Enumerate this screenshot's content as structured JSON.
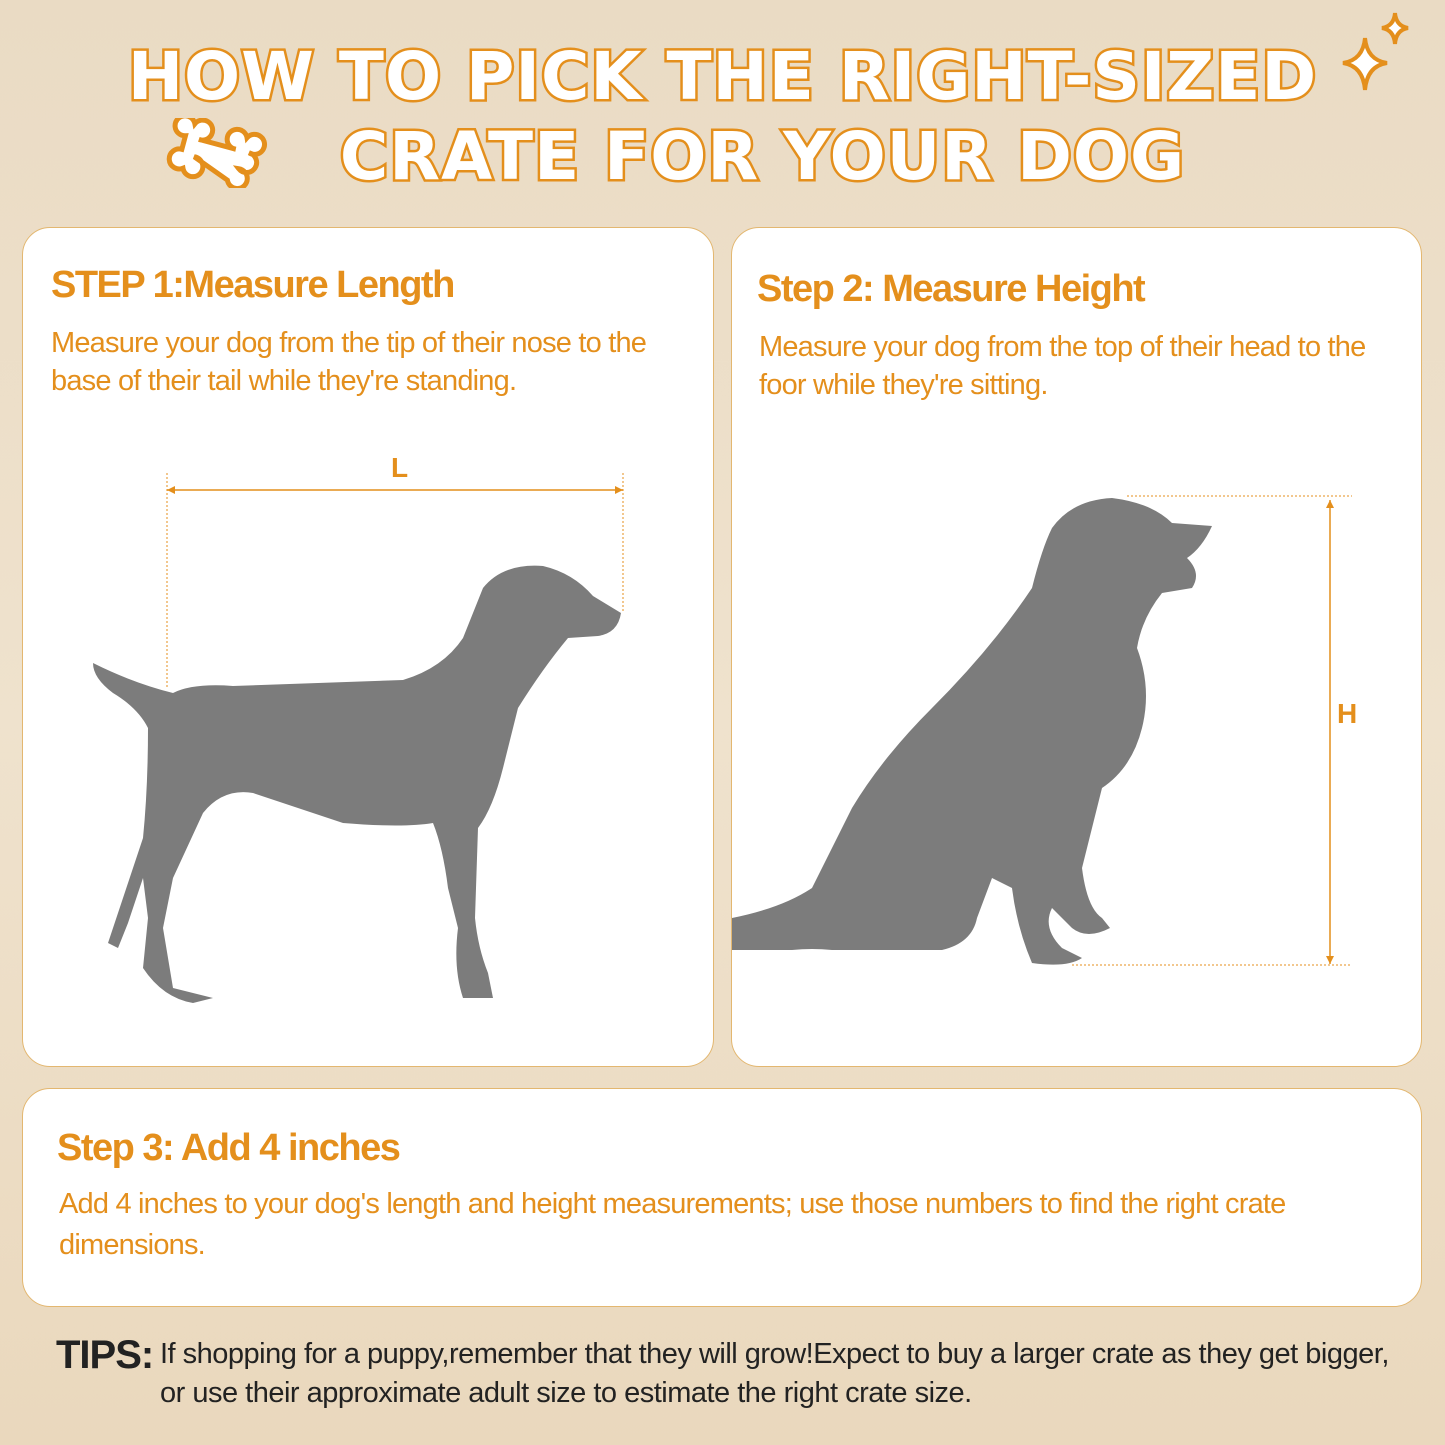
{
  "title": {
    "line1": "HOW TO PICK THE RIGHT-SIZED",
    "line2": "CRATE FOR YOUR DOG"
  },
  "colors": {
    "accent": "#e48f1c",
    "silhouette": "#7c7c7c",
    "background": "#eadbc4"
  },
  "icons": [
    "bone-icon",
    "sparkle-icon"
  ],
  "steps": [
    {
      "heading": "STEP 1:Measure Length",
      "text": "Measure your dog from the tip of their nose to the base of their tail while they're standing.",
      "dimension_label": "L"
    },
    {
      "heading": "Step 2: Measure Height",
      "text": "Measure your dog from the top of their head to the foor while they're sitting.",
      "dimension_label": "H"
    },
    {
      "heading": "Step 3: Add 4 inches",
      "text": "Add 4 inches to your dog's length and height measurements; use those numbers to find the right crate dimensions."
    }
  ],
  "tips": {
    "label": "TIPS:",
    "text": "If shopping for a puppy,remember that they will grow!Expect to buy a larger crate as they get bigger, or use their approximate adult size to estimate the right crate size."
  }
}
